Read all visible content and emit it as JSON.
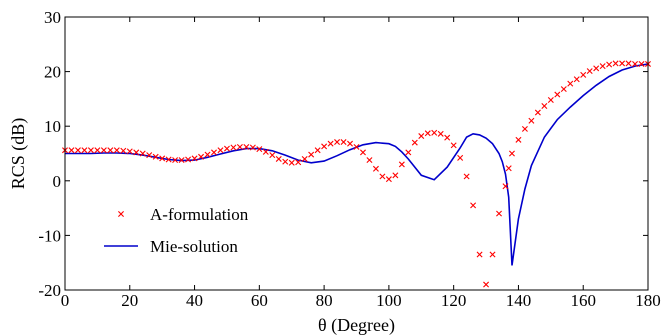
{
  "chart_data": {
    "type": "scatter+line",
    "xlabel": "θ (Degree)",
    "ylabel": "RCS (dB)",
    "xlim": [
      0,
      180
    ],
    "ylim": [
      -20,
      30
    ],
    "xticks": [
      0,
      20,
      40,
      60,
      80,
      100,
      120,
      140,
      160,
      180
    ],
    "yticks": [
      -20,
      -10,
      0,
      10,
      20,
      30
    ],
    "grid": false,
    "legend_position": "lower-left",
    "colors": {
      "markers": "#ff0000",
      "line": "#0000cc"
    },
    "series": [
      {
        "name": "A-formulation",
        "style": "x-markers",
        "x": [
          0,
          2,
          4,
          6,
          8,
          10,
          12,
          14,
          16,
          18,
          20,
          22,
          24,
          26,
          28,
          30,
          32,
          34,
          36,
          38,
          40,
          42,
          44,
          46,
          48,
          50,
          52,
          54,
          56,
          58,
          60,
          62,
          64,
          66,
          68,
          70,
          72,
          74,
          76,
          78,
          80,
          82,
          84,
          86,
          88,
          90,
          92,
          94,
          96,
          98,
          100,
          102,
          104,
          106,
          108,
          110,
          112,
          114,
          116,
          118,
          120,
          122,
          124,
          126,
          128,
          130,
          132,
          134,
          136,
          137,
          138,
          140,
          142,
          144,
          146,
          148,
          150,
          152,
          154,
          156,
          158,
          160,
          162,
          164,
          166,
          168,
          170,
          172,
          174,
          176,
          178,
          180
        ],
        "y": [
          5.6,
          5.6,
          5.6,
          5.6,
          5.6,
          5.6,
          5.6,
          5.6,
          5.6,
          5.5,
          5.4,
          5.2,
          5.0,
          4.7,
          4.4,
          4.1,
          3.9,
          3.8,
          3.8,
          3.9,
          4.1,
          4.4,
          4.8,
          5.2,
          5.6,
          5.9,
          6.1,
          6.2,
          6.2,
          6.1,
          5.8,
          5.3,
          4.7,
          4.0,
          3.5,
          3.3,
          3.4,
          4.0,
          4.8,
          5.6,
          6.3,
          6.8,
          7.1,
          7.1,
          6.8,
          6.2,
          5.2,
          3.8,
          2.2,
          0.8,
          0.3,
          1.0,
          3.0,
          5.2,
          7.0,
          8.2,
          8.7,
          8.8,
          8.6,
          7.9,
          6.5,
          4.2,
          0.8,
          -4.5,
          -13.5,
          -19.0,
          -13.5,
          -6.0,
          -1.0,
          2.3,
          5.0,
          7.5,
          9.5,
          11.0,
          12.5,
          13.7,
          14.8,
          15.8,
          16.8,
          17.8,
          18.6,
          19.4,
          20.1,
          20.6,
          21.0,
          21.3,
          21.5,
          21.5,
          21.5,
          21.4,
          21.4,
          21.4
        ]
      },
      {
        "name": "Mie-solution",
        "style": "line",
        "x": [
          0,
          4,
          8,
          12,
          16,
          20,
          24,
          28,
          32,
          36,
          40,
          44,
          48,
          52,
          56,
          60,
          64,
          68,
          72,
          76,
          80,
          84,
          88,
          92,
          96,
          100,
          102,
          104,
          106,
          108,
          110,
          114,
          118,
          122,
          124,
          126,
          128,
          130,
          132,
          134,
          135,
          136,
          137,
          138,
          140,
          142,
          144,
          148,
          152,
          156,
          160,
          164,
          168,
          172,
          176,
          180
        ],
        "y": [
          5.0,
          5.0,
          5.0,
          5.1,
          5.1,
          5.0,
          4.7,
          4.3,
          3.9,
          3.7,
          3.8,
          4.3,
          4.9,
          5.5,
          5.9,
          5.9,
          5.5,
          4.7,
          3.8,
          3.3,
          3.6,
          4.6,
          5.7,
          6.6,
          7.0,
          6.8,
          6.3,
          5.3,
          4.0,
          2.5,
          1.0,
          0.2,
          2.5,
          6.0,
          8.0,
          8.6,
          8.4,
          7.8,
          6.8,
          5.0,
          3.5,
          1.2,
          -3.0,
          -15.5,
          -7.0,
          -1.5,
          2.8,
          8.0,
          11.2,
          13.5,
          15.6,
          17.5,
          19.1,
          20.3,
          21.0,
          21.4
        ]
      }
    ]
  }
}
